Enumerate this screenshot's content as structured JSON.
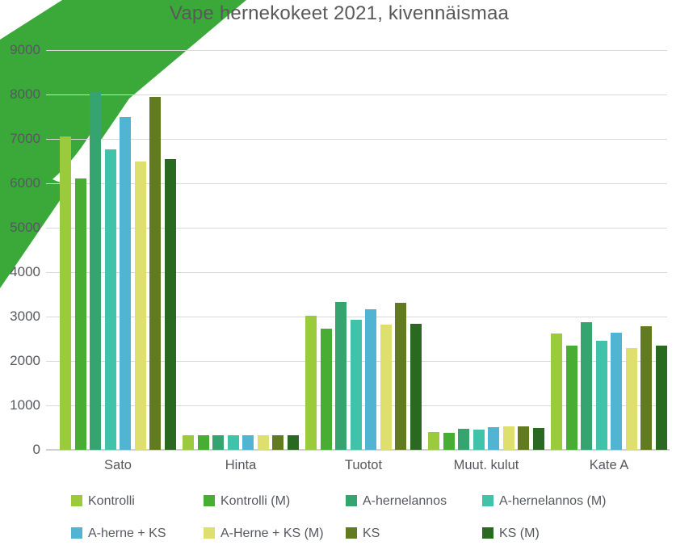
{
  "chart_data": {
    "type": "bar",
    "title": "Vape hernekokeet 2021, kivennäismaa",
    "categories": [
      "Sato",
      "Hinta",
      "Tuotot",
      "Muut. kulut",
      "Kate A"
    ],
    "series": [
      {
        "name": "Kontrolli",
        "color": "#9bca3c",
        "values": [
          7060,
          330,
          3020,
          400,
          2620
        ]
      },
      {
        "name": "Kontrolli (M)",
        "color": "#47ad33",
        "values": [
          6110,
          330,
          2720,
          380,
          2350
        ]
      },
      {
        "name": "A-hernelannos",
        "color": "#36a471",
        "values": [
          8050,
          330,
          3330,
          470,
          2870
        ]
      },
      {
        "name": "A-hernelannos (M)",
        "color": "#41c3a9",
        "values": [
          6760,
          330,
          2920,
          450,
          2460
        ]
      },
      {
        "name": "A-herne + KS",
        "color": "#50b4d2",
        "values": [
          7490,
          330,
          3160,
          510,
          2640
        ]
      },
      {
        "name": "A-Herne + KS (M)",
        "color": "#dde06f",
        "values": [
          6490,
          330,
          2820,
          520,
          2300
        ]
      },
      {
        "name": "KS",
        "color": "#627b20",
        "values": [
          7950,
          330,
          3310,
          530,
          2790
        ]
      },
      {
        "name": "KS (M)",
        "color": "#2a6a20",
        "values": [
          6550,
          330,
          2830,
          500,
          2340
        ]
      }
    ],
    "y_axis": {
      "min": 0,
      "max": 9000,
      "step": 1000,
      "tick_labels": [
        "0",
        "1000",
        "2000",
        "3000",
        "4000",
        "5000",
        "6000",
        "7000",
        "8000",
        "9000"
      ]
    },
    "grid": true,
    "legend_position": "bottom"
  },
  "colors": {
    "ribbon_green": "#3aa93a",
    "gridline": "#d9d9d9",
    "axis_line": "#cfcfcf",
    "text": "#55595f",
    "title_text": "#595959"
  }
}
